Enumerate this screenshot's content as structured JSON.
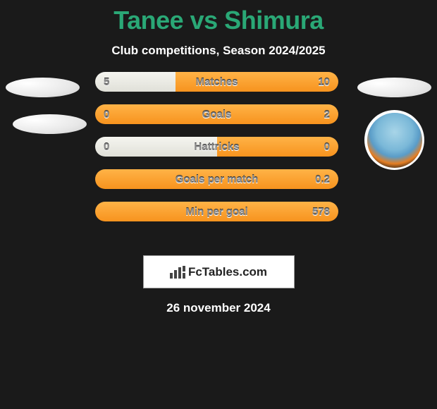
{
  "header": {
    "title": "Tanee vs Shimura",
    "subtitle": "Club competitions, Season 2024/2025"
  },
  "bars": [
    {
      "label": "Matches",
      "left": "5",
      "right": "10",
      "left_pct": 33,
      "right_pct": 67
    },
    {
      "label": "Goals",
      "left": "0",
      "right": "2",
      "left_pct": 0,
      "right_pct": 100
    },
    {
      "label": "Hattricks",
      "left": "0",
      "right": "0",
      "left_pct": 50,
      "right_pct": 50
    },
    {
      "label": "Goals per match",
      "left": "",
      "right": "0.2",
      "left_pct": 0,
      "right_pct": 100
    },
    {
      "label": "Min per goal",
      "left": "",
      "right": "578",
      "left_pct": 0,
      "right_pct": 100
    }
  ],
  "colors": {
    "bg": "#1a1a1a",
    "title": "#2aa876",
    "left_fill_top": "#f5f5f0",
    "left_fill_bottom": "#e0e0d8",
    "right_fill_top": "#ffb347",
    "right_fill_bottom": "#f7931e",
    "bar_label": "#888888"
  },
  "footer": {
    "brand": "FcTables.com",
    "date": "26 november 2024"
  }
}
